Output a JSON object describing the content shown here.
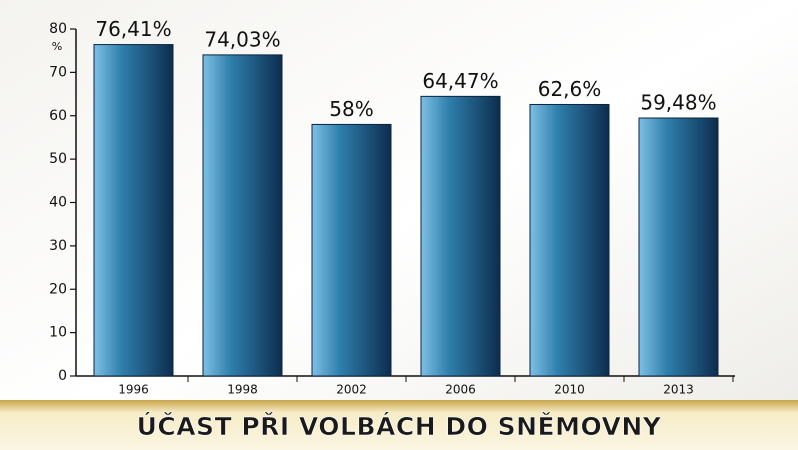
{
  "chart_data": {
    "type": "bar",
    "title": "ÚČAST PŘI VOLBÁCH DO SNĚMOVNY",
    "y_unit": "%",
    "categories": [
      "1996",
      "1998",
      "2002",
      "2006",
      "2010",
      "2013"
    ],
    "values": [
      76.41,
      74.03,
      58,
      64.47,
      62.6,
      59.48
    ],
    "value_labels": [
      "76,41%",
      "74,03%",
      "58%",
      "64,47%",
      "62,6%",
      "59,48%"
    ],
    "color": "#2f7fad",
    "ylim": [
      0,
      80
    ],
    "yticks": [
      0,
      10,
      20,
      30,
      40,
      50,
      60,
      70,
      80
    ]
  }
}
